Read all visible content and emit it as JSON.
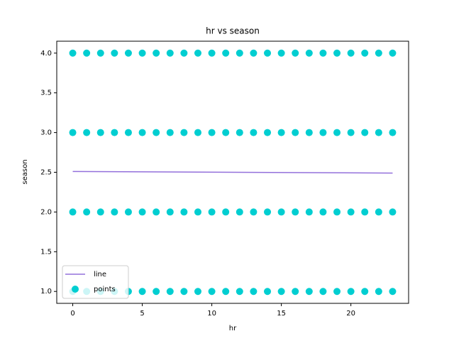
{
  "chart_data": {
    "type": "scatter",
    "title": "hr vs season",
    "x_label": "hr",
    "y_label": "season",
    "xlim": [
      -1.15,
      24.15
    ],
    "ylim": [
      0.85,
      4.15
    ],
    "xticks": [
      0,
      5,
      10,
      15,
      20
    ],
    "yticks": [
      {
        "value": 1,
        "label": "1.0"
      },
      {
        "value": 1.5,
        "label": "1.5"
      },
      {
        "value": 2,
        "label": "2.0"
      },
      {
        "value": 2.5,
        "label": "2.5"
      },
      {
        "value": 3,
        "label": "3.0"
      },
      {
        "value": 3.5,
        "label": "3.5"
      },
      {
        "value": 4,
        "label": "4.0"
      }
    ],
    "grid": false,
    "legend": "lower left",
    "series": [
      {
        "name": "line",
        "type": "line",
        "color": "#9370db",
        "x": [
          0,
          23
        ],
        "values": [
          2.51,
          2.49
        ]
      },
      {
        "name": "points",
        "type": "scatter",
        "color": "#00ced1",
        "x": [
          0,
          1,
          2,
          3,
          4,
          5,
          6,
          7,
          8,
          9,
          10,
          11,
          12,
          13,
          14,
          15,
          16,
          17,
          18,
          19,
          20,
          21,
          22,
          23,
          0,
          1,
          2,
          3,
          4,
          5,
          6,
          7,
          8,
          9,
          10,
          11,
          12,
          13,
          14,
          15,
          16,
          17,
          18,
          19,
          20,
          21,
          22,
          23,
          0,
          1,
          2,
          3,
          4,
          5,
          6,
          7,
          8,
          9,
          10,
          11,
          12,
          13,
          14,
          15,
          16,
          17,
          18,
          19,
          20,
          21,
          22,
          23,
          0,
          1,
          2,
          3,
          4,
          5,
          6,
          7,
          8,
          9,
          10,
          11,
          12,
          13,
          14,
          15,
          16,
          17,
          18,
          19,
          20,
          21,
          22,
          23
        ],
        "values": [
          1,
          1,
          1,
          1,
          1,
          1,
          1,
          1,
          1,
          1,
          1,
          1,
          1,
          1,
          1,
          1,
          1,
          1,
          1,
          1,
          1,
          1,
          1,
          1,
          2,
          2,
          2,
          2,
          2,
          2,
          2,
          2,
          2,
          2,
          2,
          2,
          2,
          2,
          2,
          2,
          2,
          2,
          2,
          2,
          2,
          2,
          2,
          2,
          3,
          3,
          3,
          3,
          3,
          3,
          3,
          3,
          3,
          3,
          3,
          3,
          3,
          3,
          3,
          3,
          3,
          3,
          3,
          3,
          3,
          3,
          3,
          3,
          4,
          4,
          4,
          4,
          4,
          4,
          4,
          4,
          4,
          4,
          4,
          4,
          4,
          4,
          4,
          4,
          4,
          4,
          4,
          4,
          4,
          4,
          4,
          4
        ]
      }
    ]
  }
}
